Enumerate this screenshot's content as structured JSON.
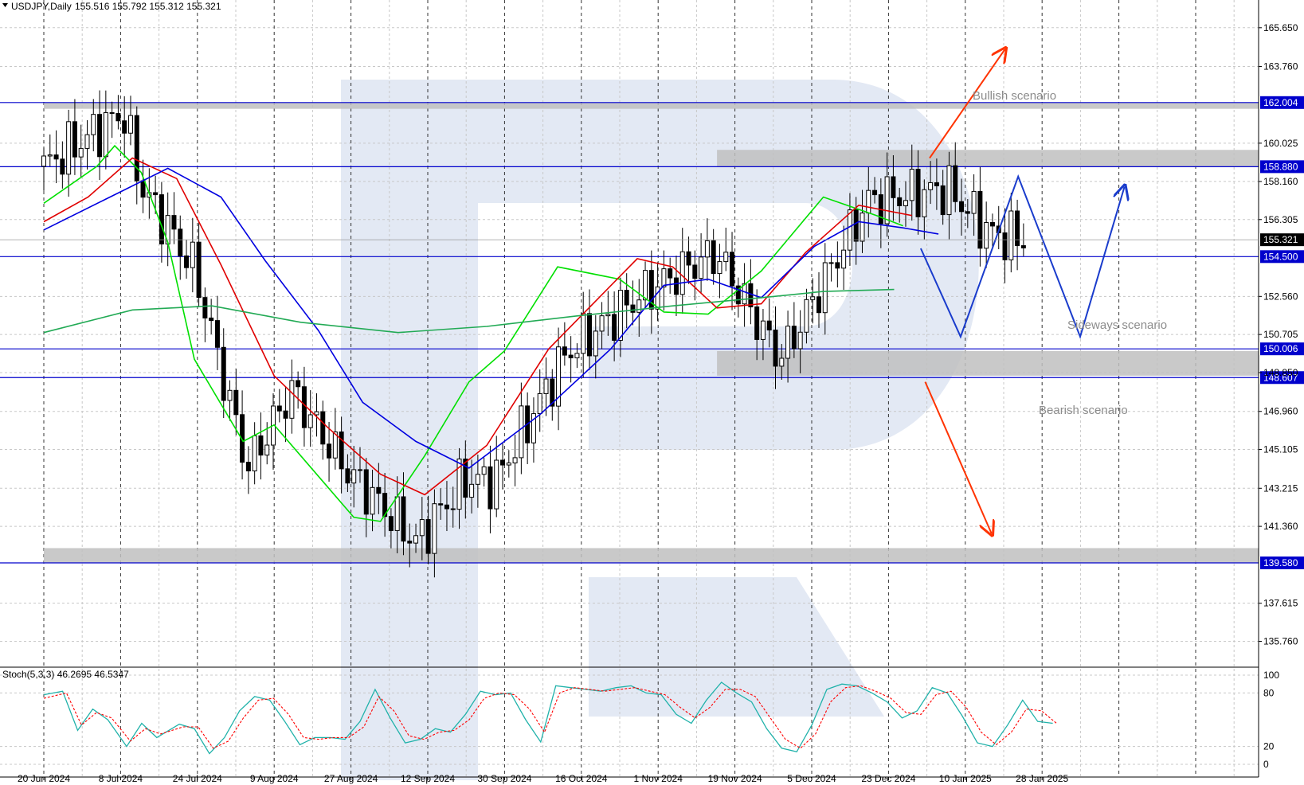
{
  "header": {
    "symbol": "USDJPY,Daily",
    "ohlc": "155.516 155.792 155.312 155.321"
  },
  "indicator": {
    "label": "Stoch(5,3,3) 46.2695 46.5347",
    "levels": [
      "100",
      "80",
      "20",
      "0"
    ]
  },
  "scenarios": {
    "bullish": "Bullish scenario",
    "sideways": "Sideways scenario",
    "bearish": "Bearish scenario"
  },
  "colors": {
    "candle": "#000000",
    "ma_fast": "#00e000",
    "ma_mid": "#e00000",
    "ma_slow": "#0000e0",
    "ma_long": "#22aa55",
    "level_line": "#0000cc",
    "zone": "#c0c0c0",
    "arrow_bull_bear": "#ff3300",
    "sideways_path": "#1a3ccc",
    "stoch_main": "#20b2aa",
    "stoch_signal": "#ff0000",
    "watermark": "#e3e9f4"
  },
  "chart_data": {
    "type": "candlestick",
    "title": "USDJPY,Daily",
    "ylim": [
      134.5,
      167.0
    ],
    "y_ticks": [
      "165.650",
      "163.760",
      "160.025",
      "158.160",
      "156.305",
      "152.560",
      "150.705",
      "148.850",
      "146.960",
      "145.105",
      "143.215",
      "141.360",
      "137.615",
      "135.760"
    ],
    "x_ticks": [
      "20 Jun 2024",
      "8 Jul 2024",
      "24 Jul 2024",
      "9 Aug 2024",
      "27 Aug 2024",
      "12 Sep 2024",
      "30 Sep 2024",
      "16 Oct 2024",
      "1 Nov 2024",
      "19 Nov 2024",
      "5 Dec 2024",
      "23 Dec 2024",
      "10 Jan 2025",
      "28 Jan 2025"
    ],
    "current_price": "155.321",
    "key_levels": [
      {
        "label": "162.004",
        "value": 162.004
      },
      {
        "label": "158.880",
        "value": 158.88
      },
      {
        "label": "154.500",
        "value": 154.5
      },
      {
        "label": "150.006",
        "value": 150.006
      },
      {
        "label": "148.607",
        "value": 148.607
      },
      {
        "label": "139.580",
        "value": 139.58
      }
    ],
    "zones": [
      {
        "from": 161.7,
        "to": 162.0,
        "start_date": "20 Jun 2024"
      },
      {
        "from": 158.9,
        "to": 159.7,
        "start_date": "19 Nov 2024"
      },
      {
        "from": 148.7,
        "to": 149.9,
        "start_date": "19 Nov 2024"
      },
      {
        "from": 139.6,
        "to": 140.3,
        "start_date": "20 Jun 2024"
      }
    ],
    "close_path": [
      {
        "date": "20 Jun 2024",
        "close": 158.9
      },
      {
        "date": "8 Jul 2024",
        "close": 161.5
      },
      {
        "date": "12 Jul 2024",
        "close": 157.9
      },
      {
        "date": "24 Jul 2024",
        "close": 153.9
      },
      {
        "date": "5 Aug 2024",
        "close": 144.2
      },
      {
        "date": "15 Aug 2024",
        "close": 148.0
      },
      {
        "date": "27 Aug 2024",
        "close": 144.2
      },
      {
        "date": "12 Sep 2024",
        "close": 140.6
      },
      {
        "date": "23 Sep 2024",
        "close": 143.6
      },
      {
        "date": "30 Sep 2024",
        "close": 143.6
      },
      {
        "date": "16 Oct 2024",
        "close": 149.8
      },
      {
        "date": "1 Nov 2024",
        "close": 152.5
      },
      {
        "date": "15 Nov 2024",
        "close": 154.3
      },
      {
        "date": "19 Nov 2024",
        "close": 154.6
      },
      {
        "date": "3 Dec 2024",
        "close": 149.6
      },
      {
        "date": "5 Dec 2024",
        "close": 150.1
      },
      {
        "date": "23 Dec 2024",
        "close": 157.2
      },
      {
        "date": "10 Jan 2025",
        "close": 157.8
      },
      {
        "date": "20 Jan 2025",
        "close": 155.6
      },
      {
        "date": "28 Jan 2025",
        "close": 155.3
      }
    ],
    "series": [
      {
        "color": "#00e000",
        "values": [
          [
            0,
            157.1
          ],
          [
            12,
            158.9
          ],
          [
            16,
            159.9
          ],
          [
            22,
            158.6
          ],
          [
            28,
            155.2
          ],
          [
            34,
            149.5
          ],
          [
            45,
            145.5
          ],
          [
            52,
            146.3
          ],
          [
            60,
            144.3
          ],
          [
            70,
            141.8
          ],
          [
            76,
            141.6
          ],
          [
            86,
            144.8
          ],
          [
            96,
            148.4
          ],
          [
            104,
            149.9
          ],
          [
            116,
            154.0
          ],
          [
            130,
            153.4
          ],
          [
            140,
            151.8
          ],
          [
            150,
            151.7
          ],
          [
            162,
            153.8
          ],
          [
            176,
            157.4
          ],
          [
            188,
            156.5
          ],
          [
            194,
            156.0
          ]
        ]
      },
      {
        "color": "#e00000",
        "values": [
          [
            0,
            156.2
          ],
          [
            10,
            157.4
          ],
          [
            20,
            159.3
          ],
          [
            30,
            158.3
          ],
          [
            40,
            154.1
          ],
          [
            52,
            148.7
          ],
          [
            64,
            146.2
          ],
          [
            76,
            143.9
          ],
          [
            86,
            142.9
          ],
          [
            100,
            145.3
          ],
          [
            114,
            150.0
          ],
          [
            134,
            154.4
          ],
          [
            142,
            154.0
          ],
          [
            152,
            152.0
          ],
          [
            162,
            152.2
          ],
          [
            172,
            154.7
          ],
          [
            184,
            157.0
          ],
          [
            196,
            156.5
          ]
        ]
      },
      {
        "color": "#0000e0",
        "values": [
          [
            0,
            155.8
          ],
          [
            14,
            157.3
          ],
          [
            28,
            158.8
          ],
          [
            40,
            157.4
          ],
          [
            50,
            154.3
          ],
          [
            62,
            150.9
          ],
          [
            72,
            147.4
          ],
          [
            84,
            145.5
          ],
          [
            96,
            144.2
          ],
          [
            112,
            146.8
          ],
          [
            128,
            150.0
          ],
          [
            140,
            153.1
          ],
          [
            150,
            153.4
          ],
          [
            162,
            152.5
          ],
          [
            174,
            155.0
          ],
          [
            184,
            156.2
          ],
          [
            194,
            155.9
          ],
          [
            202,
            155.6
          ]
        ]
      },
      {
        "color": "#22aa55",
        "values": [
          [
            0,
            150.8
          ],
          [
            20,
            151.9
          ],
          [
            38,
            152.1
          ],
          [
            58,
            151.3
          ],
          [
            80,
            150.8
          ],
          [
            100,
            151.1
          ],
          [
            120,
            151.6
          ],
          [
            142,
            152.1
          ],
          [
            162,
            152.5
          ],
          [
            176,
            152.8
          ],
          [
            192,
            152.9
          ]
        ]
      }
    ],
    "scenario_paths": [
      {
        "name": "Bullish scenario",
        "from": [
          200,
          159.3
        ],
        "to": [
          217,
          164.6
        ]
      },
      {
        "name": "Bearish scenario",
        "from": [
          199,
          148.4
        ],
        "to": [
          214,
          141.0
        ]
      },
      {
        "name": "Sideways scenario",
        "points": [
          [
            198,
            154.9
          ],
          [
            207,
            150.6
          ],
          [
            220,
            158.4
          ],
          [
            234,
            150.6
          ],
          [
            244,
            157.9
          ]
        ]
      }
    ],
    "stochastic": {
      "ylim": [
        0,
        100
      ],
      "main": [
        [
          0,
          78
        ],
        [
          5,
          82
        ],
        [
          9,
          38
        ],
        [
          13,
          62
        ],
        [
          17,
          50
        ],
        [
          22,
          20
        ],
        [
          26,
          46
        ],
        [
          30,
          30
        ],
        [
          36,
          45
        ],
        [
          40,
          40
        ],
        [
          44,
          12
        ],
        [
          48,
          30
        ],
        [
          52,
          60
        ],
        [
          56,
          76
        ],
        [
          60,
          72
        ],
        [
          64,
          48
        ],
        [
          68,
          22
        ],
        [
          72,
          30
        ],
        [
          76,
          30
        ],
        [
          80,
          28
        ],
        [
          84,
          48
        ],
        [
          88,
          84
        ],
        [
          92,
          52
        ],
        [
          96,
          24
        ],
        [
          100,
          28
        ],
        [
          104,
          40
        ],
        [
          108,
          36
        ],
        [
          112,
          56
        ],
        [
          116,
          82
        ],
        [
          120,
          78
        ],
        [
          124,
          80
        ],
        [
          128,
          50
        ],
        [
          132,
          25
        ],
        [
          136,
          88
        ],
        [
          140,
          86
        ],
        [
          144,
          84
        ],
        [
          148,
          82
        ],
        [
          152,
          86
        ],
        [
          156,
          88
        ],
        [
          160,
          80
        ],
        [
          164,
          78
        ],
        [
          168,
          56
        ],
        [
          172,
          46
        ],
        [
          176,
          72
        ],
        [
          180,
          92
        ],
        [
          184,
          80
        ],
        [
          188,
          70
        ],
        [
          192,
          40
        ],
        [
          196,
          18
        ],
        [
          200,
          14
        ],
        [
          204,
          44
        ],
        [
          208,
          84
        ],
        [
          212,
          90
        ],
        [
          216,
          88
        ],
        [
          220,
          80
        ],
        [
          224,
          70
        ],
        [
          228,
          52
        ],
        [
          232,
          60
        ],
        [
          236,
          86
        ],
        [
          240,
          80
        ],
        [
          244,
          54
        ],
        [
          248,
          24
        ],
        [
          252,
          20
        ],
        [
          256,
          44
        ],
        [
          260,
          72
        ],
        [
          264,
          48
        ],
        [
          268,
          46
        ]
      ],
      "signal": [
        [
          0,
          74
        ],
        [
          6,
          80
        ],
        [
          10,
          44
        ],
        [
          14,
          58
        ],
        [
          18,
          52
        ],
        [
          23,
          26
        ],
        [
          27,
          40
        ],
        [
          31,
          34
        ],
        [
          37,
          42
        ],
        [
          41,
          42
        ],
        [
          45,
          18
        ],
        [
          49,
          26
        ],
        [
          53,
          52
        ],
        [
          57,
          72
        ],
        [
          61,
          74
        ],
        [
          65,
          56
        ],
        [
          69,
          30
        ],
        [
          73,
          28
        ],
        [
          77,
          30
        ],
        [
          81,
          30
        ],
        [
          85,
          42
        ],
        [
          89,
          76
        ],
        [
          93,
          60
        ],
        [
          97,
          32
        ],
        [
          101,
          28
        ],
        [
          105,
          36
        ],
        [
          109,
          38
        ],
        [
          113,
          50
        ],
        [
          117,
          74
        ],
        [
          121,
          80
        ],
        [
          125,
          78
        ],
        [
          129,
          62
        ],
        [
          133,
          36
        ],
        [
          137,
          80
        ],
        [
          141,
          86
        ],
        [
          145,
          84
        ],
        [
          149,
          82
        ],
        [
          153,
          84
        ],
        [
          157,
          86
        ],
        [
          161,
          82
        ],
        [
          165,
          78
        ],
        [
          169,
          64
        ],
        [
          173,
          52
        ],
        [
          177,
          64
        ],
        [
          181,
          84
        ],
        [
          185,
          84
        ],
        [
          189,
          76
        ],
        [
          193,
          52
        ],
        [
          197,
          28
        ],
        [
          201,
          18
        ],
        [
          205,
          34
        ],
        [
          209,
          70
        ],
        [
          213,
          86
        ],
        [
          217,
          88
        ],
        [
          221,
          82
        ],
        [
          225,
          74
        ],
        [
          229,
          58
        ],
        [
          233,
          56
        ],
        [
          237,
          78
        ],
        [
          241,
          82
        ],
        [
          245,
          64
        ],
        [
          249,
          36
        ],
        [
          253,
          22
        ],
        [
          257,
          36
        ],
        [
          261,
          62
        ],
        [
          265,
          60
        ],
        [
          269,
          46
        ]
      ]
    }
  }
}
